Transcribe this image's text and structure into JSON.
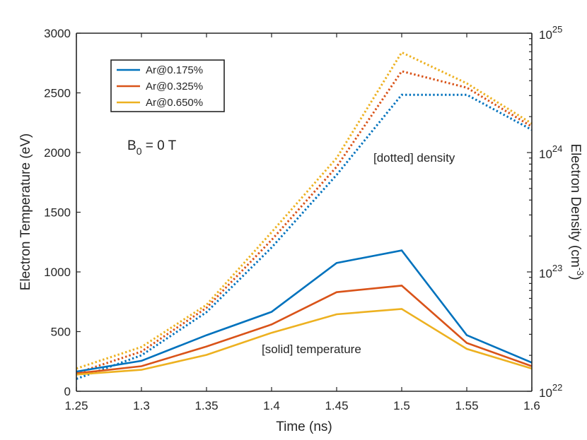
{
  "chart_data": {
    "type": "line",
    "x": [
      1.25,
      1.3,
      1.35,
      1.4,
      1.45,
      1.5,
      1.55,
      1.6
    ],
    "xlabel": "Time (ns)",
    "xlim": [
      1.25,
      1.6
    ],
    "xticks": [
      "1.25",
      "1.3",
      "1.35",
      "1.4",
      "1.45",
      "1.5",
      "1.55",
      "1.6"
    ],
    "ylabel_left": "Electron Temperature (eV)",
    "ylim_left": [
      0,
      3000
    ],
    "yticks_left": [
      "0",
      "500",
      "1000",
      "1500",
      "2000",
      "2500",
      "3000"
    ],
    "ylabel_right": {
      "main": "Electron Density (cm",
      "sup": "-3",
      "close": ")"
    },
    "ylim_right": [
      1e+22,
      1e+25
    ],
    "yscale_right": "log",
    "yticks_right": [
      {
        "value": 1e+22,
        "base": "10",
        "exp": "22"
      },
      {
        "value": 1e+23,
        "base": "10",
        "exp": "23"
      },
      {
        "value": 1e+24,
        "base": "10",
        "exp": "24"
      },
      {
        "value": 1e+25,
        "base": "10",
        "exp": "25"
      }
    ],
    "grid": false,
    "legend_position": "top-left",
    "series": [
      {
        "name": "Ar@0.175%",
        "color": "#0072BD",
        "temperature": [
          165,
          255,
          470,
          665,
          1075,
          1180,
          470,
          240
        ],
        "density": [
          1.27e+22,
          2e+22,
          4.6e+22,
          1.6e+23,
          6.5e+23,
          3.05e+24,
          3.05e+24,
          1.55e+24
        ]
      },
      {
        "name": "Ar@0.325%",
        "color": "#D95319",
        "temperature": [
          150,
          210,
          375,
          560,
          830,
          885,
          405,
          210
        ],
        "density": [
          1.42e+22,
          2.15e+22,
          5e+22,
          1.85e+23,
          7.6e+23,
          4.8e+24,
          3.5e+24,
          1.65e+24
        ]
      },
      {
        "name": "Ar@0.650%",
        "color": "#EDB120",
        "temperature": [
          140,
          180,
          305,
          490,
          645,
          690,
          355,
          190
        ],
        "density": [
          1.55e+22,
          2.35e+22,
          5.3e+22,
          2.15e+23,
          9e+23,
          6.9e+24,
          3.8e+24,
          1.75e+24
        ]
      }
    ],
    "annotations": {
      "b_field": {
        "main": "B",
        "sub": "0",
        "rest": " = 0 T"
      },
      "density_note": "[dotted] density",
      "temperature_note": "[solid] temperature"
    }
  }
}
